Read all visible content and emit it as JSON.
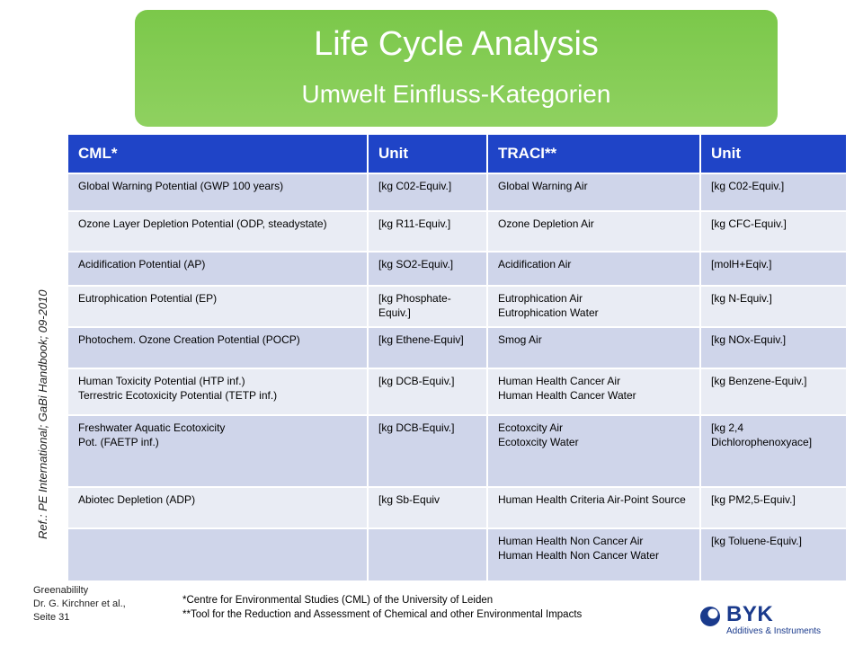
{
  "title": {
    "main": "Life Cycle Analysis",
    "sub": "Umwelt Einfluss-Kategorien"
  },
  "side_reference": "Ref.: PE International; GaBi Handbook; 09-2010",
  "table": {
    "headers": [
      "CML*",
      "Unit",
      "TRACI**",
      "Unit"
    ],
    "rows": [
      {
        "cml": "Global Warning Potential (GWP 100 years)",
        "cml_unit": "[kg C02-Equiv.]",
        "traci": "Global Warning Air",
        "traci_unit": "[kg C02-Equiv.]"
      },
      {
        "cml": "Ozone Layer Depletion Potential (ODP, steadystate)",
        "cml_unit": "[kg R11-Equiv.]",
        "traci": "Ozone Depletion Air",
        "traci_unit": "[kg CFC-Equiv.]"
      },
      {
        "cml": "Acidification Potential (AP)",
        "cml_unit": "[kg SO2-Equiv.]",
        "traci": "Acidification Air",
        "traci_unit": "[molH+Eqiv.]"
      },
      {
        "cml": "Eutrophication Potential (EP)",
        "cml_unit": "[kg Phosphate-Equiv.]",
        "traci": "Eutrophication Air\nEutrophication Water",
        "traci_unit": "[kg N-Equiv.]"
      },
      {
        "cml": "Photochem. Ozone Creation Potential (POCP)",
        "cml_unit": "[kg Ethene-Equiv]",
        "traci": "Smog Air",
        "traci_unit": "[kg NOx-Equiv.]"
      },
      {
        "cml": "Human Toxicity Potential (HTP inf.)\nTerrestric Ecotoxicity Potential (TETP inf.)",
        "cml_unit": "[kg DCB-Equiv.]",
        "traci": "Human Health Cancer Air\nHuman Health Cancer Water",
        "traci_unit": "[kg Benzene-Equiv.]"
      },
      {
        "cml": "Freshwater Aquatic Ecotoxicity\nPot. (FAETP inf.)",
        "cml_unit": "[kg DCB-Equiv.]",
        "traci": "Ecotoxcity Air\nEcotoxcity Water",
        "traci_unit": "[kg 2,4\n Dichlorophenoxyace]"
      },
      {
        "cml": "Abiotec Depletion (ADP)",
        "cml_unit": "[kg Sb-Equiv",
        "traci": "Human Health Criteria Air-Point Source",
        "traci_unit": "[kg PM2,5-Equiv.]"
      },
      {
        "cml": "",
        "cml_unit": "",
        "traci": "Human Health Non Cancer Air\nHuman Health Non Cancer Water",
        "traci_unit": "[kg Toluene-Equiv.]"
      }
    ]
  },
  "footer": {
    "left_lines": [
      "Greenabililty",
      "Dr. G. Kirchner et al.,",
      "Seite  31"
    ],
    "notes": [
      "*Centre for Environmental Studies (CML) of the University of Leiden",
      "**Tool for the Reduction and Assessment of Chemical and other Environmental Impacts"
    ]
  },
  "logo": {
    "word": "BYK",
    "tagline": "Additives & Instruments",
    "color": "#1a3a8c"
  }
}
